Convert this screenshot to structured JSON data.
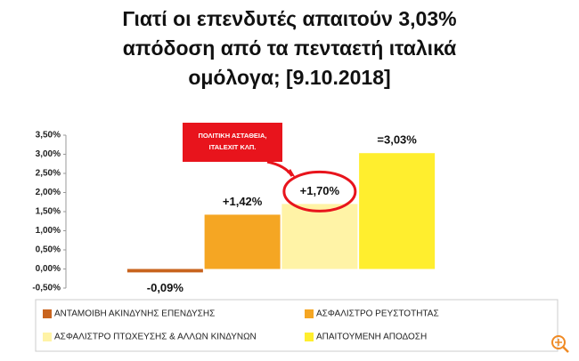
{
  "chart_data": {
    "type": "bar",
    "title": [
      "Γιατί οι επενδυτές απαιτούν 3,03%",
      "απόδοση από τα πενταετή ιταλικά",
      "ομόλογα; [9.10.2018]"
    ],
    "categories": [
      "ΑΝΤΑΜΟΙΒΗ ΑΚΙΝΔΥΝΗΣ ΕΠΕΝΔΥΣΗΣ",
      "ΑΣΦΑΛΙΣΤΡΟ ΡΕΥΣΤΟΤΗΤΑΣ",
      "ΑΣΦΑΛΙΣΤΡΟ ΠΤΩΧΕΥΣΗΣ  & ΑΛΛΩΝ ΚΙΝΔΥΝΩΝ",
      "ΑΠΑΙΤΟΥΜΕΝΗ ΑΠΟΔΟΣΗ"
    ],
    "values": [
      -0.09,
      1.42,
      1.7,
      3.03
    ],
    "value_labels": [
      "-0,09%",
      "+1,42%",
      "+1,70%",
      "=3,03%"
    ],
    "colors": [
      "#c8641e",
      "#f5a623",
      "#fff3a6",
      "#ffee2e"
    ],
    "ylim": [
      -0.5,
      3.5
    ],
    "yticks": [
      {
        "value": -0.5,
        "label": "-0,50%"
      },
      {
        "value": 0,
        "label": "0,00%"
      },
      {
        "value": 0.5,
        "label": "0,50%"
      },
      {
        "value": 1,
        "label": "1,00%"
      },
      {
        "value": 1.5,
        "label": "1,50%"
      },
      {
        "value": 2,
        "label": "2,00%"
      },
      {
        "value": 2.5,
        "label": "2,50%"
      },
      {
        "value": 3,
        "label": "3,00%"
      },
      {
        "value": 3.5,
        "label": "3,50%"
      }
    ],
    "grid": false,
    "annotation": [
      "ΠΟΛΙΤΙΚΗ ΑΣΤΑΘΕΙΑ,",
      "ITALEXIT ΚΛΠ."
    ]
  }
}
